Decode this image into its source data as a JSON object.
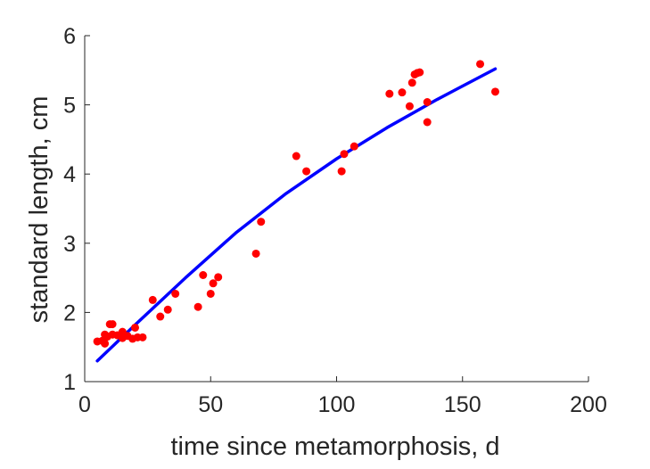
{
  "chart_data": {
    "type": "scatter",
    "title": "",
    "xlabel": "time since metamorphosis, d",
    "ylabel": "standard length, cm",
    "xlim": [
      0,
      200
    ],
    "ylim": [
      1,
      6
    ],
    "xticks": [
      0,
      50,
      100,
      150,
      200
    ],
    "yticks": [
      1,
      2,
      3,
      4,
      5,
      6
    ],
    "grid": false,
    "legend": "none",
    "colors": {
      "points": "#ff0000",
      "fit": "#0000ff",
      "axis": "#262626"
    },
    "series": [
      {
        "kind": "points",
        "x": [
          5,
          7,
          8,
          8,
          9,
          10,
          11,
          11,
          13,
          15,
          15,
          17,
          19,
          20,
          21,
          23,
          27,
          30,
          33,
          36,
          45,
          47,
          50,
          51,
          53,
          68,
          70,
          84,
          88,
          102,
          103,
          107,
          121,
          126,
          129,
          130,
          131,
          132,
          133,
          136,
          136,
          157,
          163
        ],
        "y": [
          1.58,
          1.59,
          1.55,
          1.68,
          1.65,
          1.83,
          1.68,
          1.83,
          1.67,
          1.72,
          1.63,
          1.66,
          1.62,
          1.78,
          1.64,
          1.64,
          2.18,
          1.94,
          2.04,
          2.27,
          2.08,
          2.54,
          2.27,
          2.42,
          2.51,
          2.85,
          3.31,
          4.26,
          4.04,
          4.04,
          4.29,
          4.4,
          5.16,
          5.18,
          4.98,
          5.32,
          5.44,
          5.46,
          5.47,
          5.04,
          4.75,
          5.59,
          5.19
        ]
      },
      {
        "kind": "fit",
        "x": [
          5,
          20,
          40,
          60,
          80,
          100,
          120,
          140,
          163
        ],
        "y": [
          1.3,
          1.82,
          2.5,
          3.15,
          3.72,
          4.22,
          4.67,
          5.08,
          5.52
        ]
      }
    ]
  }
}
